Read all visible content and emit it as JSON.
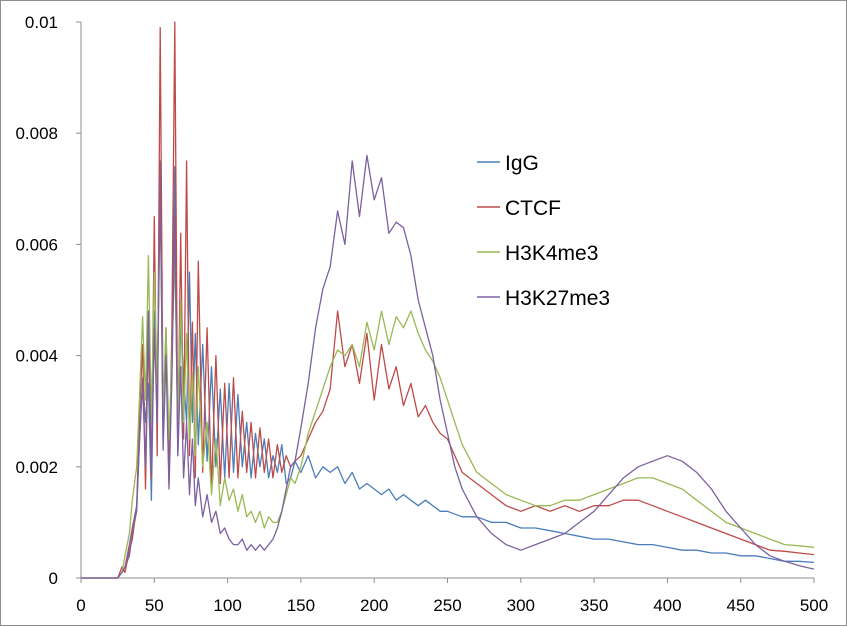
{
  "chart_data": {
    "type": "line",
    "title": "",
    "xlabel": "",
    "ylabel": "",
    "xlim": [
      0,
      500
    ],
    "ylim": [
      0,
      0.01
    ],
    "x_ticks": [
      0,
      50,
      100,
      150,
      200,
      250,
      300,
      350,
      400,
      450,
      500
    ],
    "x_tick_labels": [
      "0",
      "50",
      "100",
      "150",
      "200",
      "250",
      "300",
      "350",
      "400",
      "450",
      "500"
    ],
    "y_ticks": [
      0,
      0.002,
      0.004,
      0.006,
      0.008,
      0.01
    ],
    "y_tick_labels": [
      "0",
      "0.002",
      "0.004",
      "0.006",
      "0.008",
      "0.01"
    ],
    "grid": false,
    "legend_position": "right",
    "series": [
      {
        "name": "IgG",
        "color": "#4a7ebb",
        "x": [
          0,
          25,
          28,
          30,
          33,
          35,
          38,
          40,
          42,
          44,
          46,
          48,
          50,
          52,
          54,
          56,
          58,
          60,
          62,
          64,
          66,
          68,
          70,
          72,
          74,
          76,
          78,
          80,
          83,
          86,
          89,
          92,
          95,
          98,
          101,
          104,
          107,
          110,
          113,
          116,
          119,
          122,
          125,
          128,
          131,
          134,
          137,
          140,
          143,
          146,
          150,
          155,
          160,
          165,
          170,
          175,
          180,
          185,
          190,
          195,
          200,
          205,
          210,
          215,
          220,
          225,
          230,
          235,
          240,
          245,
          250,
          260,
          270,
          280,
          290,
          300,
          310,
          320,
          330,
          340,
          350,
          360,
          370,
          380,
          390,
          400,
          410,
          420,
          430,
          440,
          450,
          460,
          470,
          480,
          490,
          500
        ],
        "y": [
          0,
          0,
          0.0001,
          0.0002,
          0.0004,
          0.0008,
          0.0012,
          0.0025,
          0.0036,
          0.0028,
          0.0035,
          0.0014,
          0.0048,
          0.0032,
          0.0075,
          0.0025,
          0.0042,
          0.0018,
          0.0038,
          0.0074,
          0.0022,
          0.0046,
          0.0036,
          0.0028,
          0.0055,
          0.0028,
          0.0044,
          0.0024,
          0.0042,
          0.0021,
          0.0038,
          0.002,
          0.0034,
          0.0018,
          0.0035,
          0.0019,
          0.0033,
          0.002,
          0.0028,
          0.0018,
          0.0026,
          0.002,
          0.0025,
          0.0018,
          0.0022,
          0.0019,
          0.0024,
          0.0017,
          0.0018,
          0.0021,
          0.0019,
          0.0022,
          0.0018,
          0.002,
          0.0019,
          0.002,
          0.0017,
          0.0019,
          0.0016,
          0.0017,
          0.0016,
          0.0015,
          0.0016,
          0.0014,
          0.0015,
          0.0014,
          0.0013,
          0.0014,
          0.0013,
          0.0012,
          0.0012,
          0.0011,
          0.0011,
          0.001,
          0.001,
          0.0009,
          0.0009,
          0.00085,
          0.0008,
          0.00075,
          0.0007,
          0.0007,
          0.00065,
          0.0006,
          0.0006,
          0.00055,
          0.0005,
          0.0005,
          0.00045,
          0.00045,
          0.0004,
          0.0004,
          0.00035,
          0.0003,
          0.0003,
          0.00028
        ]
      },
      {
        "name": "CTCF",
        "color": "#be4b48",
        "x": [
          0,
          25,
          28,
          30,
          33,
          35,
          38,
          40,
          42,
          44,
          46,
          48,
          50,
          52,
          54,
          56,
          58,
          60,
          62,
          64,
          66,
          68,
          70,
          72,
          74,
          76,
          78,
          80,
          83,
          86,
          89,
          92,
          95,
          98,
          101,
          104,
          107,
          110,
          113,
          116,
          119,
          122,
          125,
          128,
          131,
          134,
          137,
          140,
          143,
          146,
          150,
          155,
          160,
          165,
          170,
          175,
          180,
          185,
          190,
          195,
          200,
          205,
          210,
          215,
          220,
          225,
          230,
          235,
          240,
          245,
          250,
          255,
          260,
          270,
          280,
          290,
          300,
          310,
          320,
          330,
          340,
          350,
          360,
          370,
          380,
          390,
          400,
          410,
          420,
          430,
          440,
          450,
          460,
          470,
          480,
          490,
          500
        ],
        "y": [
          0,
          0,
          0.0002,
          0.0001,
          0.0005,
          0.0007,
          0.0013,
          0.003,
          0.0042,
          0.0016,
          0.0044,
          0.0018,
          0.0065,
          0.0022,
          0.0099,
          0.0028,
          0.0045,
          0.0017,
          0.0045,
          0.01,
          0.0023,
          0.0062,
          0.0025,
          0.0075,
          0.0022,
          0.0046,
          0.0018,
          0.0057,
          0.0019,
          0.0045,
          0.0016,
          0.004,
          0.0017,
          0.0035,
          0.0018,
          0.0036,
          0.0018,
          0.003,
          0.0019,
          0.0028,
          0.0018,
          0.0027,
          0.0019,
          0.0025,
          0.0018,
          0.0024,
          0.0019,
          0.0022,
          0.002,
          0.0021,
          0.0022,
          0.0025,
          0.0028,
          0.003,
          0.0034,
          0.0048,
          0.0038,
          0.0042,
          0.0035,
          0.0044,
          0.0032,
          0.0042,
          0.0034,
          0.0038,
          0.0031,
          0.0035,
          0.0029,
          0.0031,
          0.0028,
          0.0026,
          0.0025,
          0.0022,
          0.0019,
          0.0017,
          0.0015,
          0.0013,
          0.0012,
          0.0013,
          0.0012,
          0.0013,
          0.0012,
          0.0013,
          0.0013,
          0.0014,
          0.0014,
          0.0013,
          0.0012,
          0.0011,
          0.001,
          0.0009,
          0.0008,
          0.0007,
          0.0006,
          0.0005,
          0.00048,
          0.00045,
          0.00042
        ]
      },
      {
        "name": "H3K4me3",
        "color": "#98b954",
        "x": [
          0,
          25,
          28,
          30,
          33,
          35,
          38,
          40,
          42,
          44,
          46,
          48,
          50,
          52,
          54,
          56,
          58,
          60,
          62,
          64,
          66,
          68,
          70,
          72,
          74,
          76,
          78,
          80,
          83,
          86,
          89,
          92,
          95,
          98,
          101,
          104,
          107,
          110,
          113,
          116,
          119,
          122,
          125,
          128,
          131,
          134,
          137,
          140,
          143,
          146,
          150,
          155,
          160,
          165,
          170,
          175,
          180,
          185,
          190,
          195,
          200,
          205,
          210,
          215,
          220,
          225,
          230,
          235,
          240,
          245,
          250,
          255,
          260,
          270,
          280,
          290,
          300,
          310,
          320,
          330,
          340,
          350,
          360,
          370,
          380,
          390,
          400,
          410,
          420,
          430,
          440,
          450,
          460,
          470,
          480,
          490,
          500
        ],
        "y": [
          0,
          0,
          0.0001,
          0.0004,
          0.0008,
          0.0014,
          0.002,
          0.0033,
          0.0047,
          0.0032,
          0.0058,
          0.0028,
          0.0055,
          0.0035,
          0.0068,
          0.003,
          0.0045,
          0.0025,
          0.004,
          0.0058,
          0.0028,
          0.005,
          0.0028,
          0.0044,
          0.0025,
          0.0037,
          0.0022,
          0.0038,
          0.002,
          0.0028,
          0.0015,
          0.0025,
          0.0013,
          0.0018,
          0.0014,
          0.0016,
          0.0012,
          0.0015,
          0.0011,
          0.0012,
          0.001,
          0.0012,
          0.0009,
          0.0011,
          0.001,
          0.001,
          0.0012,
          0.0015,
          0.0018,
          0.0017,
          0.002,
          0.0026,
          0.003,
          0.0034,
          0.0038,
          0.0041,
          0.004,
          0.0042,
          0.0038,
          0.0046,
          0.0041,
          0.0048,
          0.0042,
          0.0047,
          0.0045,
          0.0048,
          0.0044,
          0.0041,
          0.0039,
          0.0036,
          0.0032,
          0.0028,
          0.0024,
          0.0019,
          0.0017,
          0.0015,
          0.0014,
          0.0013,
          0.0013,
          0.0014,
          0.0014,
          0.0015,
          0.0016,
          0.0017,
          0.0018,
          0.0018,
          0.0017,
          0.0016,
          0.0014,
          0.0012,
          0.001,
          0.0009,
          0.0008,
          0.0007,
          0.0006,
          0.00058,
          0.00055
        ]
      },
      {
        "name": "H3K27me3",
        "color": "#7d60a0",
        "x": [
          0,
          25,
          28,
          30,
          33,
          35,
          38,
          40,
          42,
          44,
          46,
          48,
          50,
          52,
          54,
          56,
          58,
          60,
          62,
          64,
          66,
          68,
          70,
          72,
          74,
          76,
          78,
          80,
          83,
          86,
          89,
          92,
          95,
          98,
          101,
          104,
          107,
          110,
          113,
          116,
          119,
          122,
          125,
          128,
          131,
          134,
          137,
          140,
          143,
          146,
          150,
          155,
          160,
          165,
          170,
          175,
          180,
          185,
          190,
          195,
          200,
          205,
          210,
          215,
          220,
          225,
          230,
          235,
          240,
          245,
          250,
          255,
          260,
          270,
          280,
          290,
          300,
          310,
          320,
          330,
          340,
          350,
          360,
          370,
          380,
          390,
          400,
          410,
          420,
          430,
          440,
          450,
          460,
          470,
          480,
          490,
          500
        ],
        "y": [
          0,
          0,
          0.0001,
          0.0002,
          0.0006,
          0.0009,
          0.0013,
          0.0025,
          0.0035,
          0.002,
          0.0048,
          0.0019,
          0.0045,
          0.0028,
          0.0072,
          0.0023,
          0.004,
          0.0016,
          0.0036,
          0.0065,
          0.0022,
          0.0038,
          0.0018,
          0.0028,
          0.0015,
          0.0025,
          0.0013,
          0.0018,
          0.0011,
          0.0015,
          0.001,
          0.0012,
          0.0008,
          0.0009,
          0.0007,
          0.0006,
          0.0006,
          0.0007,
          0.0005,
          0.0006,
          0.0005,
          0.0006,
          0.0005,
          0.0006,
          0.0007,
          0.0009,
          0.0012,
          0.0016,
          0.002,
          0.0021,
          0.0027,
          0.0035,
          0.0045,
          0.0052,
          0.0056,
          0.0066,
          0.006,
          0.0075,
          0.0065,
          0.0076,
          0.0068,
          0.0072,
          0.0062,
          0.0064,
          0.0063,
          0.0058,
          0.005,
          0.0045,
          0.004,
          0.0032,
          0.0026,
          0.002,
          0.0016,
          0.0011,
          0.0008,
          0.0006,
          0.0005,
          0.0006,
          0.0007,
          0.0008,
          0.001,
          0.0012,
          0.0015,
          0.0018,
          0.002,
          0.0021,
          0.0022,
          0.0021,
          0.0019,
          0.0016,
          0.0012,
          0.0009,
          0.0006,
          0.0004,
          0.0003,
          0.00022,
          0.00016
        ]
      }
    ]
  }
}
